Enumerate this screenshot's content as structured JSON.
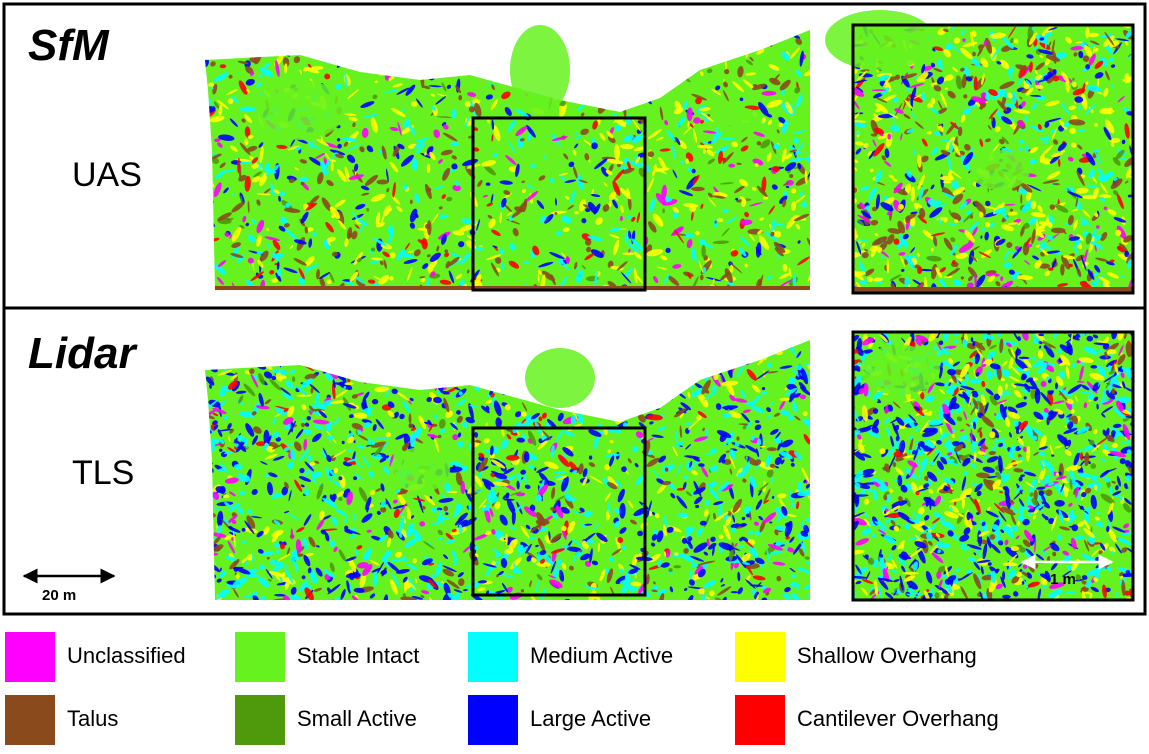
{
  "panels": [
    {
      "method": "SfM",
      "platform": "UAS"
    },
    {
      "method": "Lidar",
      "platform": "TLS"
    }
  ],
  "scale_bars": {
    "overview": "20 m",
    "detail": "1 m"
  },
  "legend": [
    {
      "label": "Unclassified",
      "color": "#ff00ff"
    },
    {
      "label": "Stable Intact",
      "color": "#66f21e"
    },
    {
      "label": "Medium Active",
      "color": "#00ffff"
    },
    {
      "label": "Shallow Overhang",
      "color": "#ffff00"
    },
    {
      "label": "Talus",
      "color": "#8b4a1c"
    },
    {
      "label": "Small Active",
      "color": "#4f9a0c"
    },
    {
      "label": "Large Active",
      "color": "#0000ff"
    },
    {
      "label": "Cantilever Overhang",
      "color": "#ff0000"
    }
  ]
}
